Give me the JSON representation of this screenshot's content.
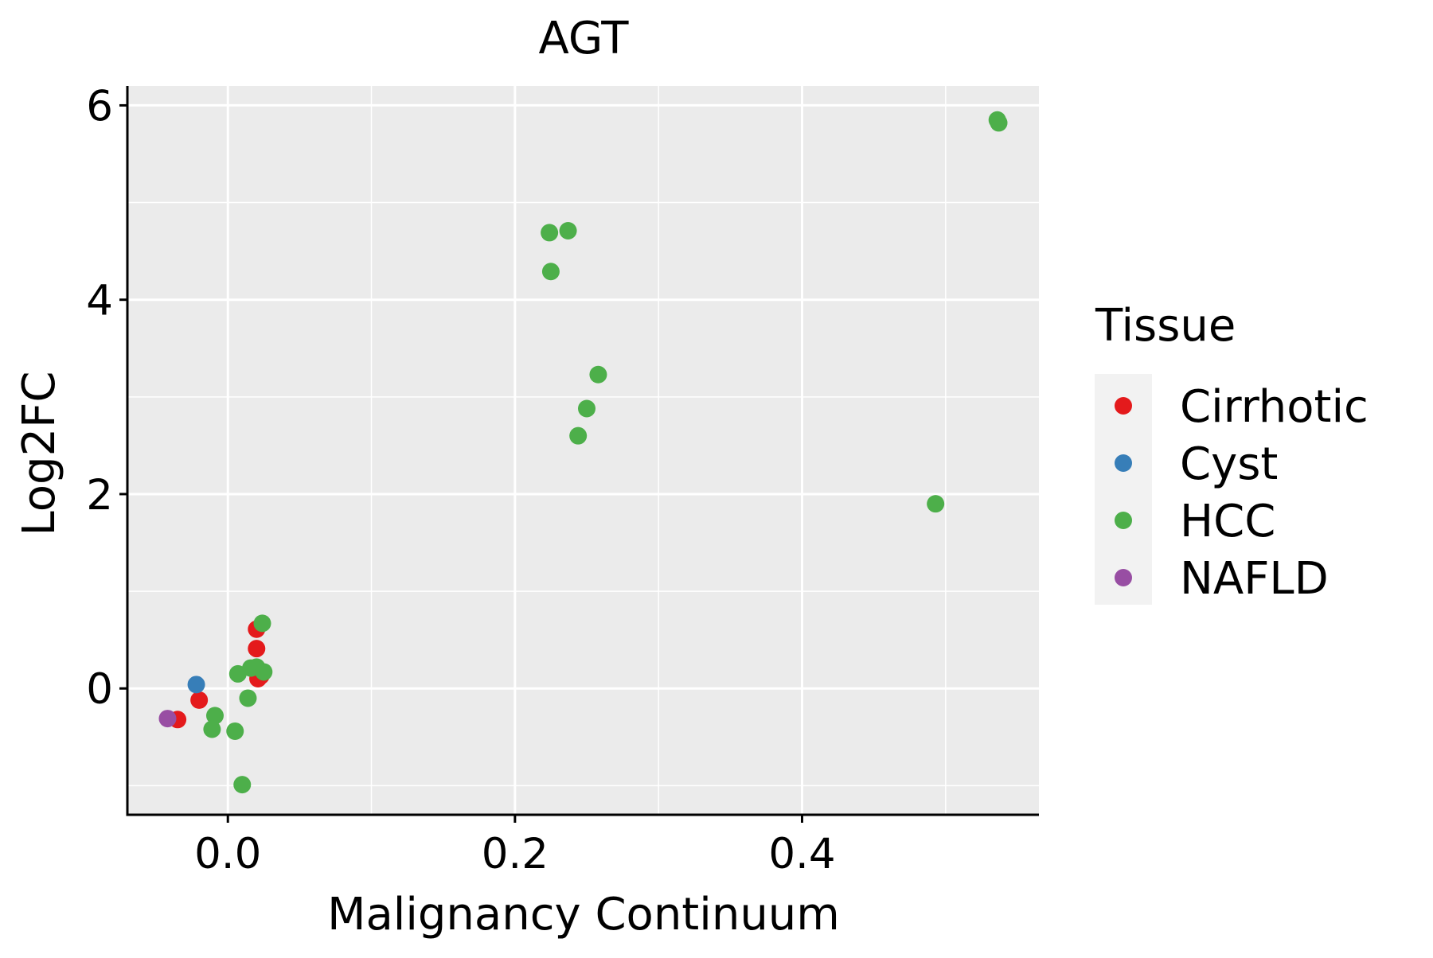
{
  "chart_data": {
    "type": "scatter",
    "title": "AGT",
    "xlabel": "Malignancy Continuum",
    "ylabel": "Log2FC",
    "xlim": [
      -0.07,
      0.565
    ],
    "ylim": [
      -1.3,
      6.2
    ],
    "x_ticks": [
      0.0,
      0.2,
      0.4
    ],
    "x_tick_labels": [
      "0.0",
      "0.2",
      "0.4"
    ],
    "x_minor_ticks": [
      0.1,
      0.3,
      0.5
    ],
    "y_ticks": [
      0,
      2,
      4,
      6
    ],
    "y_tick_labels": [
      "0",
      "2",
      "4",
      "6"
    ],
    "y_minor_ticks": [
      -1,
      1,
      3,
      5
    ],
    "grid": true,
    "legend": {
      "title": "Tissue",
      "position": "right"
    },
    "series": [
      {
        "name": "Cirrhotic",
        "color": "#E41A1C",
        "points": [
          {
            "x": -0.035,
            "y": -0.32
          },
          {
            "x": -0.02,
            "y": -0.12
          },
          {
            "x": 0.02,
            "y": 0.61
          },
          {
            "x": 0.02,
            "y": 0.41
          },
          {
            "x": 0.021,
            "y": 0.1
          },
          {
            "x": 0.023,
            "y": 0.13
          }
        ]
      },
      {
        "name": "Cyst",
        "color": "#377EB8",
        "points": [
          {
            "x": -0.022,
            "y": 0.04
          }
        ]
      },
      {
        "name": "HCC",
        "color": "#4DAF4A",
        "points": [
          {
            "x": 0.536,
            "y": 5.85
          },
          {
            "x": 0.537,
            "y": 5.82
          },
          {
            "x": 0.224,
            "y": 4.69
          },
          {
            "x": 0.237,
            "y": 4.71
          },
          {
            "x": 0.225,
            "y": 4.29
          },
          {
            "x": 0.258,
            "y": 3.23
          },
          {
            "x": 0.25,
            "y": 2.88
          },
          {
            "x": 0.244,
            "y": 2.6
          },
          {
            "x": 0.493,
            "y": 1.9
          },
          {
            "x": 0.024,
            "y": 0.67
          },
          {
            "x": 0.007,
            "y": 0.15
          },
          {
            "x": 0.016,
            "y": 0.21
          },
          {
            "x": 0.02,
            "y": 0.22
          },
          {
            "x": 0.025,
            "y": 0.17
          },
          {
            "x": 0.014,
            "y": -0.1
          },
          {
            "x": -0.009,
            "y": -0.28
          },
          {
            "x": -0.011,
            "y": -0.42
          },
          {
            "x": 0.005,
            "y": -0.44
          },
          {
            "x": 0.01,
            "y": -0.99
          }
        ]
      },
      {
        "name": "NAFLD",
        "color": "#984EA3",
        "points": [
          {
            "x": -0.042,
            "y": -0.31
          }
        ]
      }
    ]
  }
}
